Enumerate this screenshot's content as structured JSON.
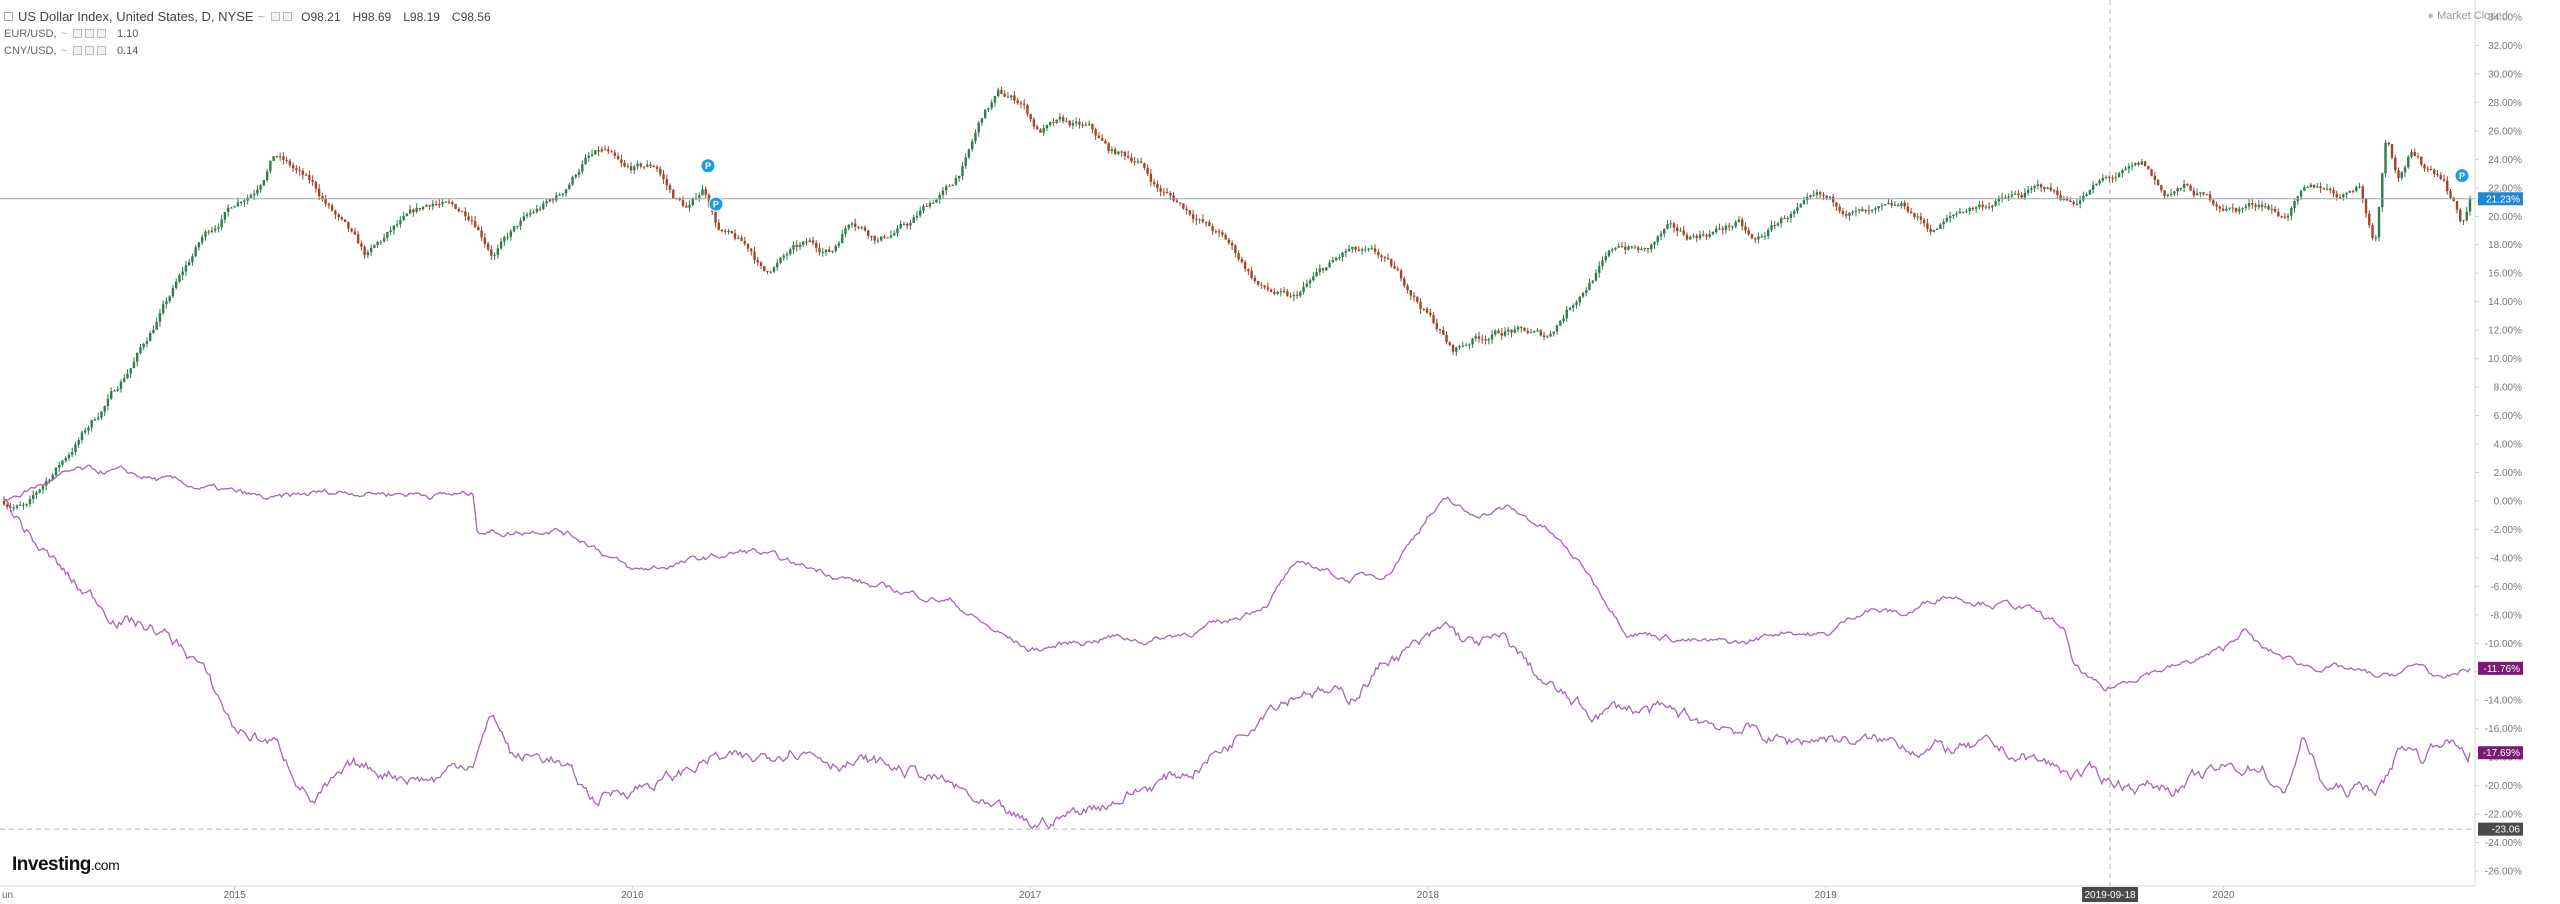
{
  "legend": {
    "title": "US Dollar Index, United States, D, NYSE",
    "ohlc": {
      "o": "O98.21",
      "h": "H98.69",
      "l": "L98.19",
      "c": "C98.56"
    },
    "series": [
      {
        "label": "EUR/USD,",
        "value": "1.10"
      },
      {
        "label": "CNY/USD,",
        "value": "0.14"
      }
    ]
  },
  "market_status": "Market Closed",
  "brand": {
    "name": "Investing",
    "suffix": ".com"
  },
  "chart_data": {
    "type": "line",
    "xlabel": "",
    "ylabel": "",
    "ylim": [
      -26,
      35
    ],
    "y_ticks": [
      "34.00%",
      "32.00%",
      "30.00%",
      "28.00%",
      "26.00%",
      "24.00%",
      "22.00%",
      "20.00%",
      "18.00%",
      "16.00%",
      "14.00%",
      "12.00%",
      "10.00%",
      "8.00%",
      "6.00%",
      "4.00%",
      "2.00%",
      "0.00%",
      "-2.00%",
      "-4.00%",
      "-6.00%",
      "-8.00%",
      "-10.00%",
      "-12.00%",
      "-14.00%",
      "-16.00%",
      "-18.00%",
      "-20.00%",
      "-22.00%",
      "-24.00%",
      "-26.00%"
    ],
    "x_start_label": "un",
    "x_ticks": [
      {
        "label": "2015",
        "t": 2015.0
      },
      {
        "label": "2016",
        "t": 2016.0
      },
      {
        "label": "2017",
        "t": 2017.0
      },
      {
        "label": "2018",
        "t": 2018.0
      },
      {
        "label": "2019",
        "t": 2019.0
      },
      {
        "label": "2020",
        "t": 2020.0
      }
    ],
    "x_range": [
      2014.41,
      2020.62
    ],
    "crosshair": {
      "x_label": "2019-09-18",
      "x": 2019.715,
      "y_label": "-23.06",
      "y": -23.06
    },
    "price_line": {
      "y": 21.23,
      "label": "21.23%"
    },
    "markers": [
      {
        "label": "P",
        "x": 2016.19,
        "y": 23.2
      },
      {
        "label": "P",
        "x": 2016.21,
        "y": 20.5
      },
      {
        "label": "P",
        "x": 2020.6,
        "y": 22.5
      }
    ],
    "colors": {
      "up": "#2e7d4f",
      "down": "#a0452b",
      "compare": "#a766b6",
      "last_label": "#7b1a72",
      "price_label": "#1f86d6",
      "marker": "#1e9be6"
    },
    "series": [
      {
        "kind": "candles",
        "last_value": 21.23,
        "anchors": [
          [
            2014.42,
            0
          ],
          [
            2014.48,
            -0.5
          ],
          [
            2014.53,
            1.5
          ],
          [
            2014.6,
            4
          ],
          [
            2014.68,
            7
          ],
          [
            2014.75,
            10
          ],
          [
            2014.83,
            14
          ],
          [
            2014.87,
            16
          ],
          [
            2014.92,
            18.5
          ],
          [
            2014.97,
            20
          ],
          [
            2015.0,
            21
          ],
          [
            2015.05,
            22
          ],
          [
            2015.1,
            24.5
          ],
          [
            2015.14,
            23.5
          ],
          [
            2015.2,
            22
          ],
          [
            2015.28,
            19
          ],
          [
            2015.33,
            17
          ],
          [
            2015.4,
            19
          ],
          [
            2015.5,
            21
          ],
          [
            2015.6,
            20
          ],
          [
            2015.65,
            17.5
          ],
          [
            2015.72,
            19.5
          ],
          [
            2015.82,
            21.5
          ],
          [
            2015.88,
            24
          ],
          [
            2015.93,
            24.5
          ],
          [
            2015.98,
            23
          ],
          [
            2016.06,
            23.5
          ],
          [
            2016.1,
            21.5
          ],
          [
            2016.14,
            20.5
          ],
          [
            2016.18,
            22
          ],
          [
            2016.22,
            19
          ],
          [
            2016.3,
            17.5
          ],
          [
            2016.33,
            16
          ],
          [
            2016.4,
            17.5
          ],
          [
            2016.45,
            18
          ],
          [
            2016.5,
            17.5
          ],
          [
            2016.55,
            20
          ],
          [
            2016.62,
            18.5
          ],
          [
            2016.7,
            19.5
          ],
          [
            2016.75,
            21
          ],
          [
            2016.8,
            22
          ],
          [
            2016.84,
            24
          ],
          [
            2016.88,
            27
          ],
          [
            2016.92,
            28.5
          ],
          [
            2016.98,
            28
          ],
          [
            2017.02,
            26
          ],
          [
            2017.08,
            26.5
          ],
          [
            2017.15,
            26
          ],
          [
            2017.2,
            24.5
          ],
          [
            2017.27,
            24
          ],
          [
            2017.32,
            22
          ],
          [
            2017.37,
            21
          ],
          [
            2017.42,
            20
          ],
          [
            2017.5,
            18
          ],
          [
            2017.58,
            15
          ],
          [
            2017.66,
            14
          ],
          [
            2017.73,
            16
          ],
          [
            2017.8,
            17.5
          ],
          [
            2017.88,
            17
          ],
          [
            2017.95,
            15
          ],
          [
            2018.03,
            12
          ],
          [
            2018.06,
            10.5
          ],
          [
            2018.12,
            11.5
          ],
          [
            2018.2,
            12
          ],
          [
            2018.3,
            11.5
          ],
          [
            2018.35,
            13.5
          ],
          [
            2018.42,
            16
          ],
          [
            2018.48,
            18
          ],
          [
            2018.55,
            17.5
          ],
          [
            2018.6,
            19
          ],
          [
            2018.65,
            18.5
          ],
          [
            2018.72,
            19
          ],
          [
            2018.78,
            19.5
          ],
          [
            2018.82,
            18
          ],
          [
            2018.9,
            20
          ],
          [
            2018.98,
            21
          ],
          [
            2019.05,
            20.5
          ],
          [
            2019.12,
            20
          ],
          [
            2019.2,
            20.5
          ],
          [
            2019.27,
            19
          ],
          [
            2019.35,
            20.5
          ],
          [
            2019.42,
            21
          ],
          [
            2019.5,
            21.5
          ],
          [
            2019.55,
            22
          ],
          [
            2019.62,
            21
          ],
          [
            2019.7,
            22.5
          ],
          [
            2019.76,
            23
          ],
          [
            2019.8,
            23.5
          ],
          [
            2019.85,
            21.5
          ],
          [
            2019.9,
            22
          ],
          [
            2019.97,
            21
          ],
          [
            2020.03,
            20.5
          ],
          [
            2020.1,
            21
          ],
          [
            2020.15,
            20
          ],
          [
            2020.2,
            21.5
          ],
          [
            2020.25,
            22
          ],
          [
            2020.3,
            21.5
          ],
          [
            2020.34,
            22.5
          ],
          [
            2020.38,
            18
          ],
          [
            2020.41,
            26
          ],
          [
            2020.44,
            23
          ],
          [
            2020.47,
            24.5
          ],
          [
            2020.5,
            23.5
          ],
          [
            2020.55,
            23
          ],
          [
            2020.58,
            21
          ],
          [
            2020.6,
            19.5
          ],
          [
            2020.62,
            21.2
          ]
        ]
      },
      {
        "kind": "line",
        "name": "EUR/USD",
        "last_value": -11.76,
        "anchors": [
          [
            2014.42,
            0
          ],
          [
            2014.5,
            1
          ],
          [
            2014.6,
            2
          ],
          [
            2014.7,
            2
          ],
          [
            2014.8,
            1.5
          ],
          [
            2014.9,
            1
          ],
          [
            2015.0,
            0.5
          ],
          [
            2015.1,
            0
          ],
          [
            2015.2,
            0.5
          ],
          [
            2015.3,
            0.7
          ],
          [
            2015.4,
            0.6
          ],
          [
            2015.5,
            0.5
          ],
          [
            2015.6,
            0.4
          ],
          [
            2015.61,
            -2
          ],
          [
            2015.7,
            -2.2
          ],
          [
            2015.8,
            -1.8
          ],
          [
            2015.9,
            -3
          ],
          [
            2016.0,
            -5
          ],
          [
            2016.1,
            -4.5
          ],
          [
            2016.2,
            -4
          ],
          [
            2016.3,
            -3.5
          ],
          [
            2016.4,
            -4.5
          ],
          [
            2016.5,
            -5
          ],
          [
            2016.6,
            -6
          ],
          [
            2016.7,
            -6.5
          ],
          [
            2016.8,
            -7
          ],
          [
            2016.9,
            -9
          ],
          [
            2017.0,
            -10.5
          ],
          [
            2017.1,
            -10
          ],
          [
            2017.2,
            -9.5
          ],
          [
            2017.3,
            -9.8
          ],
          [
            2017.4,
            -9.2
          ],
          [
            2017.5,
            -8.5
          ],
          [
            2017.6,
            -7
          ],
          [
            2017.65,
            -5
          ],
          [
            2017.7,
            -4.5
          ],
          [
            2017.8,
            -5.5
          ],
          [
            2017.9,
            -5
          ],
          [
            2018.0,
            -1
          ],
          [
            2018.05,
            0
          ],
          [
            2018.1,
            -1
          ],
          [
            2018.2,
            -0.5
          ],
          [
            2018.3,
            -2
          ],
          [
            2018.4,
            -5
          ],
          [
            2018.5,
            -9
          ],
          [
            2018.6,
            -9.5
          ],
          [
            2018.7,
            -10
          ],
          [
            2018.8,
            -10
          ],
          [
            2018.9,
            -9
          ],
          [
            2019.0,
            -9.5
          ],
          [
            2019.1,
            -7.5
          ],
          [
            2019.2,
            -8
          ],
          [
            2019.3,
            -6.5
          ],
          [
            2019.4,
            -7
          ],
          [
            2019.5,
            -7.5
          ],
          [
            2019.6,
            -9
          ],
          [
            2019.62,
            -11.5
          ],
          [
            2019.7,
            -13.5
          ],
          [
            2019.8,
            -12
          ],
          [
            2019.9,
            -11.5
          ],
          [
            2020.0,
            -10.5
          ],
          [
            2020.05,
            -9
          ],
          [
            2020.1,
            -10.5
          ],
          [
            2020.2,
            -11.5
          ],
          [
            2020.3,
            -11.8
          ],
          [
            2020.4,
            -12.5
          ],
          [
            2020.5,
            -11.5
          ],
          [
            2020.55,
            -12.8
          ],
          [
            2020.62,
            -11.76
          ]
        ]
      },
      {
        "kind": "line",
        "name": "CNY/USD",
        "last_value": -17.69,
        "anchors": [
          [
            2014.42,
            0
          ],
          [
            2014.5,
            -3
          ],
          [
            2014.6,
            -6
          ],
          [
            2014.7,
            -8
          ],
          [
            2014.8,
            -9
          ],
          [
            2014.9,
            -11
          ],
          [
            2015.0,
            -16
          ],
          [
            2015.1,
            -17
          ],
          [
            2015.2,
            -21
          ],
          [
            2015.3,
            -19
          ],
          [
            2015.4,
            -19
          ],
          [
            2015.5,
            -19.5
          ],
          [
            2015.6,
            -18
          ],
          [
            2015.65,
            -15
          ],
          [
            2015.7,
            -18
          ],
          [
            2015.8,
            -18
          ],
          [
            2015.9,
            -21
          ],
          [
            2016.0,
            -20
          ],
          [
            2016.1,
            -19.5
          ],
          [
            2016.2,
            -18
          ],
          [
            2016.3,
            -18.5
          ],
          [
            2016.4,
            -17
          ],
          [
            2016.5,
            -18
          ],
          [
            2016.6,
            -18.5
          ],
          [
            2016.7,
            -19
          ],
          [
            2016.8,
            -20
          ],
          [
            2016.9,
            -22
          ],
          [
            2017.0,
            -23
          ],
          [
            2017.1,
            -22
          ],
          [
            2017.2,
            -21
          ],
          [
            2017.3,
            -20
          ],
          [
            2017.4,
            -19
          ],
          [
            2017.5,
            -17
          ],
          [
            2017.6,
            -14
          ],
          [
            2017.7,
            -13
          ],
          [
            2017.8,
            -14
          ],
          [
            2017.9,
            -11
          ],
          [
            2018.0,
            -10
          ],
          [
            2018.05,
            -9
          ],
          [
            2018.1,
            -10
          ],
          [
            2018.2,
            -10
          ],
          [
            2018.3,
            -13
          ],
          [
            2018.4,
            -15
          ],
          [
            2018.5,
            -14.5
          ],
          [
            2018.6,
            -15
          ],
          [
            2018.7,
            -15.5
          ],
          [
            2018.8,
            -16
          ],
          [
            2018.9,
            -17
          ],
          [
            2019.0,
            -16.5
          ],
          [
            2019.1,
            -17
          ],
          [
            2019.2,
            -17
          ],
          [
            2019.3,
            -17.5
          ],
          [
            2019.4,
            -17.5
          ],
          [
            2019.5,
            -18
          ],
          [
            2019.6,
            -19
          ],
          [
            2019.7,
            -19.5
          ],
          [
            2019.8,
            -20
          ],
          [
            2019.9,
            -20
          ],
          [
            2020.0,
            -19
          ],
          [
            2020.1,
            -18.5
          ],
          [
            2020.15,
            -21
          ],
          [
            2020.2,
            -16.5
          ],
          [
            2020.25,
            -20
          ],
          [
            2020.3,
            -20.5
          ],
          [
            2020.4,
            -20
          ],
          [
            2020.45,
            -17
          ],
          [
            2020.5,
            -18
          ],
          [
            2020.55,
            -16.5
          ],
          [
            2020.62,
            -17.69
          ]
        ]
      }
    ]
  }
}
